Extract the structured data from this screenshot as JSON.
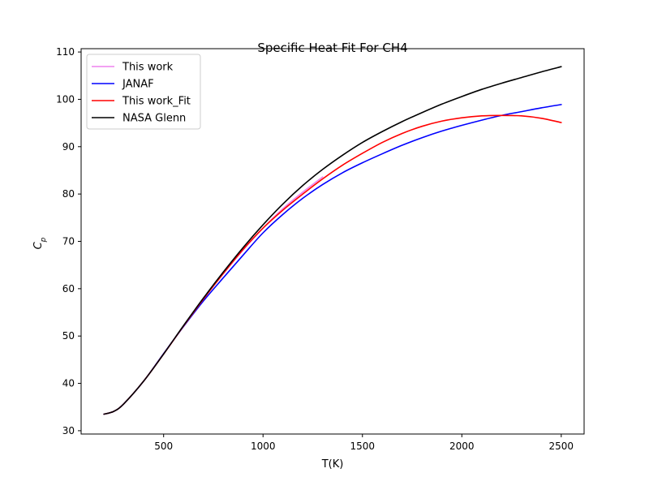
{
  "chart_data": {
    "type": "line",
    "title": "Specific Heat Fit For CH4",
    "xlabel": "T(K)",
    "ylabel_base": "C",
    "ylabel_sub": "p",
    "xlim": [
      85,
      2615
    ],
    "ylim": [
      29.3,
      110.7
    ],
    "xticks": [
      500,
      1000,
      1500,
      2000,
      2500
    ],
    "yticks": [
      30,
      40,
      50,
      60,
      70,
      80,
      90,
      100,
      110
    ],
    "grid": false,
    "legend_position": "top-left",
    "series": [
      {
        "name": "This work",
        "color": "#ee82ee",
        "x": [
          200,
          250,
          300,
          400,
          500,
          600,
          700,
          800,
          900,
          1000,
          1100,
          1200,
          1300
        ],
        "y": [
          33.5,
          34.1,
          35.7,
          40.5,
          46.2,
          52.1,
          57.8,
          63.2,
          68.2,
          72.8,
          76.9,
          80.4,
          83.6
        ]
      },
      {
        "name": "JANAF",
        "color": "#0000ff",
        "x": [
          200,
          250,
          300,
          400,
          500,
          600,
          700,
          800,
          900,
          1000,
          1100,
          1200,
          1300,
          1400,
          1500,
          1600,
          1700,
          1800,
          1900,
          2000,
          2100,
          2200,
          2300,
          2400,
          2500
        ],
        "y": [
          33.5,
          34.1,
          35.7,
          40.5,
          46.3,
          52.0,
          57.4,
          62.3,
          67.1,
          71.8,
          75.7,
          79.1,
          82.0,
          84.5,
          86.6,
          88.5,
          90.3,
          91.9,
          93.3,
          94.5,
          95.6,
          96.6,
          97.4,
          98.2,
          98.9
        ]
      },
      {
        "name": "This work_Fit",
        "color": "#ff0000",
        "x": [
          200,
          250,
          300,
          400,
          500,
          600,
          700,
          800,
          900,
          1000,
          1100,
          1200,
          1300,
          1400,
          1500,
          1600,
          1700,
          1800,
          1900,
          2000,
          2100,
          2200,
          2300,
          2400,
          2500
        ],
        "y": [
          33.5,
          34.1,
          35.7,
          40.5,
          46.2,
          52.1,
          57.8,
          63.2,
          68.3,
          72.8,
          76.6,
          80.0,
          83.2,
          86.1,
          88.6,
          90.9,
          92.8,
          94.3,
          95.4,
          96.1,
          96.5,
          96.6,
          96.5,
          96.0,
          95.1
        ]
      },
      {
        "name": "NASA Glenn",
        "color": "#000000",
        "x": [
          200,
          250,
          300,
          400,
          500,
          600,
          700,
          800,
          900,
          1000,
          1100,
          1200,
          1300,
          1400,
          1500,
          1600,
          1700,
          1800,
          1900,
          2000,
          2100,
          2200,
          2300,
          2400,
          2500
        ],
        "y": [
          33.5,
          34.1,
          35.7,
          40.5,
          46.2,
          52.2,
          58.0,
          63.5,
          68.7,
          73.5,
          77.9,
          81.8,
          85.2,
          88.2,
          90.9,
          93.2,
          95.3,
          97.2,
          99.0,
          100.6,
          102.1,
          103.4,
          104.6,
          105.8,
          106.9
        ]
      }
    ]
  }
}
